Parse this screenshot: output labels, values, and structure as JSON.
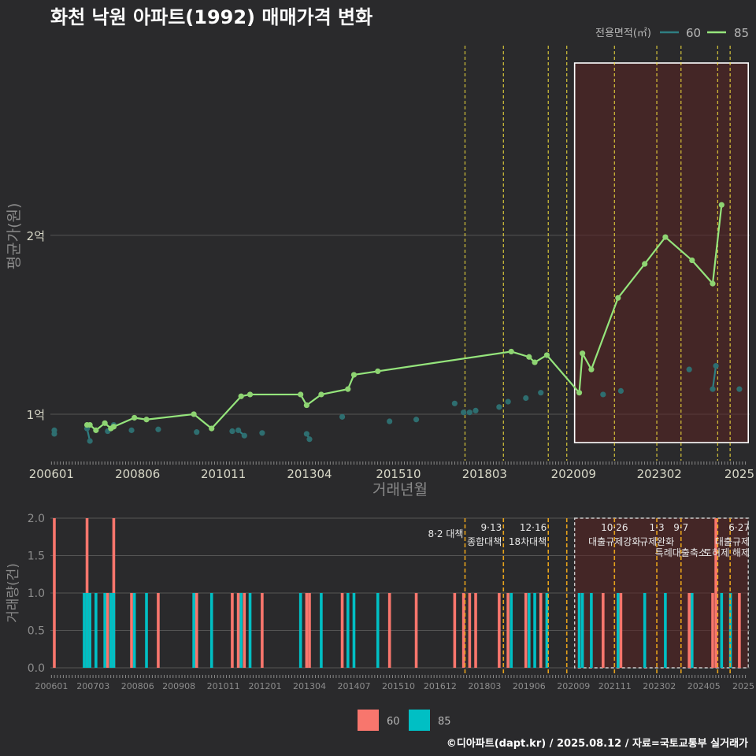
{
  "title": "화천 낙원 아파트(1992) 매매가격 변화",
  "caption": "©디아파트(dapt.kr) / 2025.08.12 / 자료=국토교통부 실거래가",
  "colors": {
    "background": "#2a2a2c",
    "line60": "#2f7e82",
    "point60": "#2e6e70",
    "line85": "#95e57c",
    "point85": "#8ed472",
    "bar60": "#f8766d",
    "bar85": "#00bfc4",
    "policy_line": "#f3df3c",
    "policy_line_bottom": "#e6a21b",
    "highlight_fill": "#5a2323",
    "grid": "#555555"
  },
  "chart_data": [
    {
      "type": "line",
      "title": "화천 낙원 아파트(1992) 매매가격 변화",
      "xlabel": "거래년월",
      "ylabel": "평균가(원)",
      "x_ticks": [
        "200601",
        "200806",
        "201011",
        "201304",
        "201510",
        "201803",
        "202009",
        "202302",
        "2025"
      ],
      "y_ticks": [
        {
          "value": 10000,
          "label": "1억"
        },
        {
          "value": 20000,
          "label": "2억"
        }
      ],
      "y_unit": "만원",
      "ylim": [
        7400,
        30600
      ],
      "xlim": [
        2005.97,
        2025.62
      ],
      "legend": {
        "title": "전용면적(㎡)",
        "position": "top-right",
        "entries": [
          "60",
          "85"
        ]
      },
      "highlight_range": [
        2020.7,
        2025.58
      ],
      "policy_dates": [
        2017.62,
        2018.7,
        2019.96,
        2020.48,
        2021.82,
        2023.01,
        2023.69,
        2024.72,
        2025.07
      ],
      "series": [
        {
          "name": "85",
          "points": [
            [
              2007.0,
              9400
            ],
            [
              2007.08,
              9400
            ],
            [
              2007.25,
              9100
            ],
            [
              2007.5,
              9500
            ],
            [
              2007.67,
              9200
            ],
            [
              2007.75,
              9300
            ],
            [
              2008.33,
              9800
            ],
            [
              2008.67,
              9700
            ],
            [
              2010.0,
              10000
            ],
            [
              2010.5,
              9200
            ],
            [
              2011.33,
              11000
            ],
            [
              2011.58,
              11100
            ],
            [
              2013.0,
              11100
            ],
            [
              2013.17,
              10500
            ],
            [
              2013.58,
              11100
            ],
            [
              2014.33,
              11400
            ],
            [
              2014.5,
              12200
            ],
            [
              2015.17,
              12400
            ],
            [
              2018.92,
              13500
            ],
            [
              2019.42,
              13200
            ],
            [
              2019.58,
              12900
            ],
            [
              2019.92,
              13300
            ],
            [
              2020.83,
              11200
            ],
            [
              2020.92,
              13400
            ],
            [
              2021.17,
              12500
            ],
            [
              2021.92,
              16500
            ],
            [
              2022.67,
              18400
            ],
            [
              2023.25,
              19900
            ],
            [
              2024.0,
              18600
            ],
            [
              2024.58,
              17300
            ],
            [
              2024.83,
              21700
            ]
          ]
        },
        {
          "name": "60",
          "points": [
            [
              2006.08,
              9100
            ],
            [
              2006.08,
              8900
            ],
            [
              2007.0,
              9200
            ],
            [
              2007.08,
              8500
            ],
            [
              2007.58,
              9050
            ],
            [
              2007.75,
              9400
            ],
            [
              2008.25,
              9100
            ],
            [
              2009.0,
              9150
            ],
            [
              2010.08,
              9000
            ],
            [
              2011.08,
              9050
            ],
            [
              2011.25,
              9100
            ],
            [
              2011.42,
              8800
            ],
            [
              2011.92,
              8950
            ],
            [
              2013.17,
              8900
            ],
            [
              2013.25,
              8600
            ],
            [
              2014.17,
              9850
            ],
            [
              2015.5,
              9600
            ],
            [
              2016.25,
              9700
            ],
            [
              2017.33,
              10600
            ],
            [
              2017.58,
              10100
            ],
            [
              2017.75,
              10100
            ],
            [
              2017.92,
              10200
            ],
            [
              2018.58,
              10400
            ],
            [
              2018.83,
              10700
            ],
            [
              2019.33,
              10900
            ],
            [
              2019.75,
              11200
            ],
            [
              2021.5,
              11100
            ],
            [
              2022.0,
              11300
            ],
            [
              2023.92,
              12500
            ],
            [
              2024.58,
              11400
            ],
            [
              2024.67,
              12700
            ],
            [
              2025.33,
              11400
            ]
          ],
          "segments": [
            [
              [
                2007.0,
                9200
              ],
              [
                2007.08,
                8500
              ]
            ],
            [
              [
                2011.25,
                9100
              ],
              [
                2011.42,
                8800
              ]
            ],
            [
              [
                2013.17,
                8900
              ],
              [
                2013.25,
                8600
              ]
            ],
            [
              [
                2024.58,
                11400
              ],
              [
                2024.67,
                12700
              ]
            ]
          ]
        }
      ]
    },
    {
      "type": "bar",
      "xlabel": "",
      "ylabel": "거래량(건)",
      "y_ticks": [
        "0.0",
        "0.5",
        "1.0",
        "1.5",
        "2.0"
      ],
      "ylim": [
        0,
        2
      ],
      "x_ticks": [
        "200601",
        "200703",
        "200806",
        "200908",
        "201011",
        "201201",
        "201304",
        "201407",
        "201510",
        "201612",
        "201803",
        "201906",
        "202009",
        "202111",
        "202302",
        "202405",
        "2025"
      ],
      "legend": {
        "position": "bottom",
        "entries": [
          "60",
          "85"
        ]
      },
      "highlight_range": [
        2020.7,
        2025.58
      ],
      "events": [
        {
          "date": 2017.62,
          "top": "",
          "bottom": "8·2 대책"
        },
        {
          "date": 2018.7,
          "top": "9·13",
          "bottom": "종합대책"
        },
        {
          "date": 2019.96,
          "top": "12·16",
          "bottom": "18차대책"
        },
        {
          "date": 2021.82,
          "top": "10·26",
          "bottom": "대출규제강화"
        },
        {
          "date": 2023.01,
          "top": "1·3",
          "bottom": "규제완화"
        },
        {
          "date": 2023.69,
          "top": "9·7",
          "bottom": "특례대출축소"
        },
        {
          "date": 2024.72,
          "top": "",
          "bottom": "토허제 해제"
        },
        {
          "date": 2025.37,
          "top": "6·27",
          "bottom": "대출규제"
        }
      ],
      "series": [
        {
          "name": "60",
          "bars": [
            [
              2006.08,
              2
            ],
            [
              2007.0,
              2
            ],
            [
              2007.08,
              1
            ],
            [
              2007.58,
              1
            ],
            [
              2007.75,
              2
            ],
            [
              2008.25,
              1
            ],
            [
              2009.0,
              1
            ],
            [
              2010.08,
              1
            ],
            [
              2011.08,
              1
            ],
            [
              2011.25,
              1
            ],
            [
              2011.42,
              1
            ],
            [
              2011.92,
              1
            ],
            [
              2013.17,
              1
            ],
            [
              2013.25,
              1
            ],
            [
              2014.17,
              1
            ],
            [
              2015.5,
              1
            ],
            [
              2016.25,
              1
            ],
            [
              2017.33,
              1
            ],
            [
              2017.58,
              1
            ],
            [
              2017.75,
              1
            ],
            [
              2017.92,
              1
            ],
            [
              2018.58,
              1
            ],
            [
              2018.83,
              1
            ],
            [
              2019.33,
              1
            ],
            [
              2019.75,
              1
            ],
            [
              2021.5,
              1
            ],
            [
              2022.0,
              1
            ],
            [
              2023.92,
              1
            ],
            [
              2024.58,
              1
            ],
            [
              2024.67,
              2
            ],
            [
              2025.33,
              1
            ]
          ]
        },
        {
          "name": "85",
          "bars": [
            [
              2006.92,
              1
            ],
            [
              2007.0,
              1
            ],
            [
              2007.08,
              1
            ],
            [
              2007.25,
              1
            ],
            [
              2007.5,
              1
            ],
            [
              2007.67,
              1
            ],
            [
              2007.75,
              1
            ],
            [
              2008.33,
              1
            ],
            [
              2008.67,
              1
            ],
            [
              2010.0,
              1
            ],
            [
              2010.5,
              1
            ],
            [
              2011.33,
              1
            ],
            [
              2011.58,
              1
            ],
            [
              2013.0,
              1
            ],
            [
              2013.58,
              1
            ],
            [
              2014.33,
              1
            ],
            [
              2014.5,
              1
            ],
            [
              2015.17,
              1
            ],
            [
              2018.92,
              1
            ],
            [
              2019.42,
              1
            ],
            [
              2019.58,
              1
            ],
            [
              2019.92,
              1
            ],
            [
              2020.83,
              1
            ],
            [
              2020.92,
              1
            ],
            [
              2021.17,
              1
            ],
            [
              2021.92,
              1
            ],
            [
              2022.67,
              1
            ],
            [
              2023.25,
              1
            ],
            [
              2024.0,
              1
            ],
            [
              2024.83,
              1
            ],
            [
              2025.08,
              1
            ]
          ]
        }
      ]
    }
  ]
}
